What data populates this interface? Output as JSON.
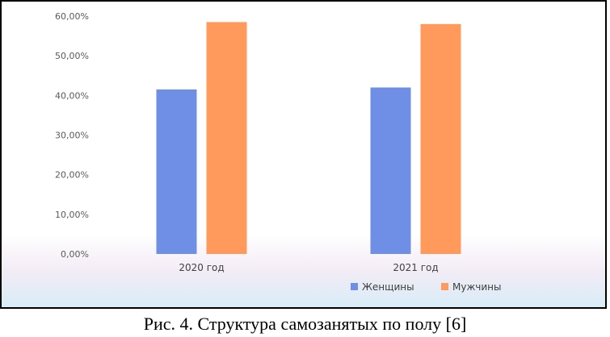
{
  "caption": "Рис. 4. Структура самозанятых по полу [6]",
  "colors": {
    "series_1": "#6f8fe6",
    "series_2": "#ff9a5c"
  },
  "chart_data": {
    "type": "bar",
    "title": "",
    "xlabel": "",
    "ylabel": "",
    "categories": [
      "2020 год",
      "2021 год"
    ],
    "series": [
      {
        "name": "Женщины",
        "values": [
          41.5,
          42.0
        ]
      },
      {
        "name": "Мужчины",
        "values": [
          58.5,
          58.0
        ]
      }
    ],
    "ylim": [
      0,
      60
    ],
    "y_ticks": [
      "0,00%",
      "10,00%",
      "20,00%",
      "30,00%",
      "40,00%",
      "50,00%",
      "60,00%"
    ],
    "grid": false,
    "legend_position": "bottom"
  }
}
